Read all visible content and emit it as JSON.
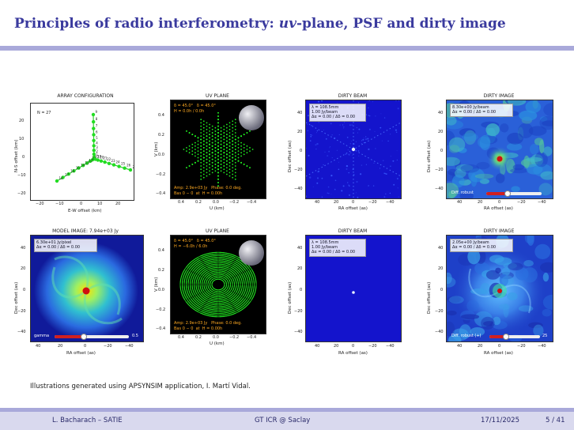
{
  "slide": {
    "title_pre": "Principles of radio interferometry: ",
    "title_em": "uv",
    "title_post": "-plane, PSF and dirty image",
    "caption": "Illustrations generated using APSYNSIM application, I. Martí Vidal."
  },
  "footer": {
    "author": "L. Bacharach – SATIE",
    "event": "GT ICR @ Saclay",
    "date": "17/11/2025",
    "page": "5 / 41"
  },
  "top_row": {
    "array": {
      "title": "ARRAY CONFIGURATION",
      "n_label": "N = 27",
      "xlabel": "E-W offset (km)",
      "ylabel": "N-S offset (km)",
      "xticks": [
        "−20",
        "−10",
        "0",
        "10",
        "20"
      ],
      "yticks": [
        "20",
        "10",
        "0",
        "−10",
        "−20"
      ],
      "antenna_labels": [
        "1",
        "2",
        "3",
        "4",
        "5",
        "6",
        "7",
        "8",
        "9",
        "10",
        "11",
        "12",
        "13",
        "14",
        "15",
        "16",
        "17",
        "18",
        "19",
        "20",
        "21",
        "22",
        "23",
        "24",
        "25",
        "26",
        "27"
      ]
    },
    "uv": {
      "title": "UV PLANE",
      "info1": "δ = 45.0°   δ = 45.0°",
      "info2": "H = 0.0h / 0.0h",
      "info3": "Amp: 2.9e+03 Jy   Phase: 0.0 deg.",
      "info4": "Bas 0 − 0  at  H = 0.00h",
      "xlabel": "U (km)",
      "ylabel": "V (km)",
      "xticks": [
        "0.4",
        "0.2",
        "0.0",
        "−0.2",
        "−0.4"
      ],
      "yticks": [
        "0.4",
        "0.2",
        "0.0",
        "−0.2",
        "−0.4"
      ]
    },
    "beam": {
      "title": "DIRTY BEAM",
      "info1": "λ = 108.5mm",
      "info2": "1.00 Jy/beam",
      "info3": "Δα = 0.00 / Δδ = 0.00",
      "xlabel": "RA offset (as)",
      "ylabel": "Dec offset (as)",
      "xticks": [
        "40",
        "20",
        "0",
        "−20",
        "−40"
      ],
      "yticks": [
        "40",
        "20",
        "0",
        "−20",
        "−40"
      ]
    },
    "dirty": {
      "title": "DIRTY IMAGE",
      "info1": "8.30e+00 Jy/beam",
      "info2": "Δα = 0.00 / Δδ = 0.00",
      "slider_label": "Diff. robust",
      "xlabel": "RA offset (as)",
      "ylabel": "Dec offset (as)",
      "xticks": [
        "40",
        "20",
        "0",
        "−20",
        "−40"
      ],
      "yticks": [
        "40",
        "20",
        "0",
        "−20",
        "−40"
      ]
    }
  },
  "bottom_row": {
    "model": {
      "title": "MODEL IMAGE: 7.94e+03 Jy",
      "info1": "6.30e+01 Jy/pixel",
      "info2": "Δα = 0.00 / Δδ = 0.00",
      "slider_label": "gamma",
      "slider_value": "0.5",
      "xlabel": "RA offset (as)",
      "ylabel": "Dec offset (as)",
      "xticks": [
        "40",
        "20",
        "0",
        "−20",
        "−40"
      ],
      "yticks": [
        "40",
        "20",
        "0",
        "−20",
        "−40"
      ]
    },
    "uv": {
      "title": "UV PLANE",
      "info1": "δ = 45.0°   δ = 45.0°",
      "info2": "H = −6.0h / 6.0h",
      "info3": "Amp: 2.9e+03 Jy   Phase: 0.0 deg.",
      "info4": "Bas 0 − 0  at  H = 0.00h",
      "xlabel": "U (km)",
      "ylabel": "V (km)",
      "xticks": [
        "0.4",
        "0.2",
        "0.0",
        "−0.2",
        "−0.4"
      ],
      "yticks": [
        "0.4",
        "0.2",
        "0.0",
        "−0.2",
        "−0.4"
      ]
    },
    "beam": {
      "title": "DIRTY BEAM",
      "info1": "λ = 108.5mm",
      "info2": "1.00 Jy/beam",
      "info3": "Δα = 0.00 / Δδ = 0.00",
      "xlabel": "RA offset (as)",
      "ylabel": "Dec offset (as)",
      "xticks": [
        "40",
        "20",
        "0",
        "−20",
        "−40"
      ],
      "yticks": [
        "40",
        "20",
        "0",
        "−20",
        "−40"
      ]
    },
    "dirty": {
      "title": "DIRTY IMAGE",
      "info1": "2.05e+00 Jy/beam",
      "info2": "Δα = 0.00 / Δδ = 0.00",
      "slider_label": "Diff. robust (+)",
      "slider_value": "25",
      "xlabel": "RA offset (as)",
      "ylabel": "Dec offset (as)",
      "xticks": [
        "40",
        "20",
        "0",
        "−20",
        "−40"
      ],
      "yticks": [
        "40",
        "20",
        "0",
        "−20",
        "−40"
      ]
    }
  },
  "colors": {
    "accent": "#3a3a9e",
    "bar": "#a9a9da",
    "antenna": "#22dd22",
    "beam_bg": "#1414cc",
    "dirty_bg": "#2a60d8"
  }
}
